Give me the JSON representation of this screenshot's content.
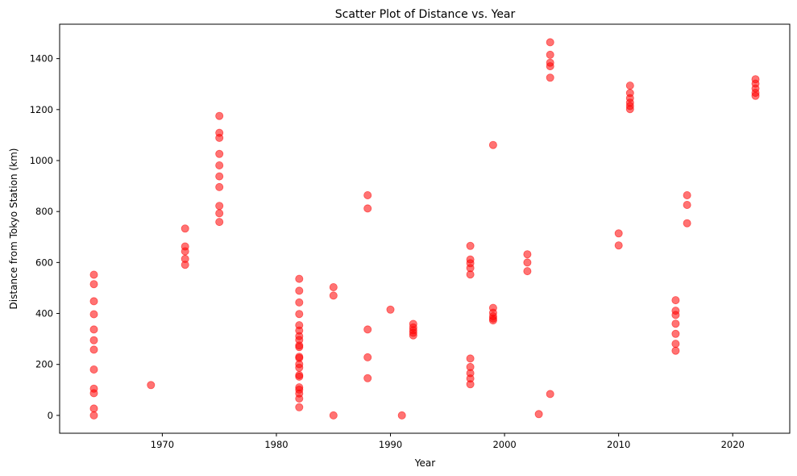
{
  "chart_data": {
    "type": "scatter",
    "title": "Scatter Plot of Distance vs. Year",
    "xlabel": "Year",
    "ylabel": "Distance from Tokyo Station (km)",
    "xlim": [
      1961,
      2025
    ],
    "ylim": [
      -70,
      1535
    ],
    "xticks": [
      1970,
      1980,
      1990,
      2000,
      2010,
      2020
    ],
    "yticks": [
      0,
      200,
      400,
      600,
      800,
      1000,
      1200,
      1400
    ],
    "grid": false,
    "legend": "none",
    "marker_color": "#ff0000",
    "marker_alpha": 0.55,
    "points": [
      [
        1964,
        0
      ],
      [
        1964,
        27
      ],
      [
        1964,
        87
      ],
      [
        1964,
        105
      ],
      [
        1964,
        180
      ],
      [
        1964,
        258
      ],
      [
        1964,
        295
      ],
      [
        1964,
        337
      ],
      [
        1964,
        397
      ],
      [
        1964,
        448
      ],
      [
        1964,
        515
      ],
      [
        1964,
        552
      ],
      [
        1969,
        119
      ],
      [
        1972,
        591
      ],
      [
        1972,
        614
      ],
      [
        1972,
        644
      ],
      [
        1972,
        663
      ],
      [
        1972,
        733
      ],
      [
        1975,
        759
      ],
      [
        1975,
        793
      ],
      [
        1975,
        822
      ],
      [
        1975,
        896
      ],
      [
        1975,
        938
      ],
      [
        1975,
        981
      ],
      [
        1975,
        1026
      ],
      [
        1975,
        1089
      ],
      [
        1975,
        1109
      ],
      [
        1975,
        1175
      ],
      [
        1982,
        32
      ],
      [
        1982,
        66
      ],
      [
        1982,
        86
      ],
      [
        1982,
        101
      ],
      [
        1982,
        110
      ],
      [
        1982,
        152
      ],
      [
        1982,
        158
      ],
      [
        1982,
        187
      ],
      [
        1982,
        201
      ],
      [
        1982,
        225
      ],
      [
        1982,
        230
      ],
      [
        1982,
        268
      ],
      [
        1982,
        274
      ],
      [
        1982,
        296
      ],
      [
        1982,
        311
      ],
      [
        1982,
        333
      ],
      [
        1982,
        354
      ],
      [
        1982,
        398
      ],
      [
        1982,
        443
      ],
      [
        1982,
        489
      ],
      [
        1982,
        536
      ],
      [
        1985,
        0
      ],
      [
        1985,
        470
      ],
      [
        1985,
        503
      ],
      [
        1988,
        146
      ],
      [
        1988,
        228
      ],
      [
        1988,
        337
      ],
      [
        1988,
        812
      ],
      [
        1988,
        864
      ],
      [
        1990,
        415
      ],
      [
        1991,
        0
      ],
      [
        1992,
        314
      ],
      [
        1992,
        324
      ],
      [
        1992,
        334
      ],
      [
        1992,
        345
      ],
      [
        1992,
        359
      ],
      [
        1997,
        122
      ],
      [
        1997,
        145
      ],
      [
        1997,
        166
      ],
      [
        1997,
        190
      ],
      [
        1997,
        223
      ],
      [
        1997,
        553
      ],
      [
        1997,
        578
      ],
      [
        1997,
        597
      ],
      [
        1997,
        612
      ],
      [
        1997,
        665
      ],
      [
        1999,
        373
      ],
      [
        1999,
        380
      ],
      [
        1999,
        389
      ],
      [
        1999,
        403
      ],
      [
        1999,
        422
      ],
      [
        1999,
        1061
      ],
      [
        2002,
        566
      ],
      [
        2002,
        600
      ],
      [
        2002,
        632
      ],
      [
        2003,
        5
      ],
      [
        2004,
        84
      ],
      [
        2004,
        1325
      ],
      [
        2004,
        1370
      ],
      [
        2004,
        1384
      ],
      [
        2004,
        1415
      ],
      [
        2004,
        1464
      ],
      [
        2010,
        667
      ],
      [
        2010,
        714
      ],
      [
        2011,
        1202
      ],
      [
        2011,
        1214
      ],
      [
        2011,
        1227
      ],
      [
        2011,
        1245
      ],
      [
        2011,
        1265
      ],
      [
        2011,
        1294
      ],
      [
        2015,
        254
      ],
      [
        2015,
        281
      ],
      [
        2015,
        320
      ],
      [
        2015,
        360
      ],
      [
        2015,
        394
      ],
      [
        2015,
        411
      ],
      [
        2015,
        452
      ],
      [
        2016,
        754
      ],
      [
        2016,
        826
      ],
      [
        2016,
        864
      ],
      [
        2022,
        1254
      ],
      [
        2022,
        1266
      ],
      [
        2022,
        1283
      ],
      [
        2022,
        1302
      ],
      [
        2022,
        1319
      ]
    ]
  }
}
